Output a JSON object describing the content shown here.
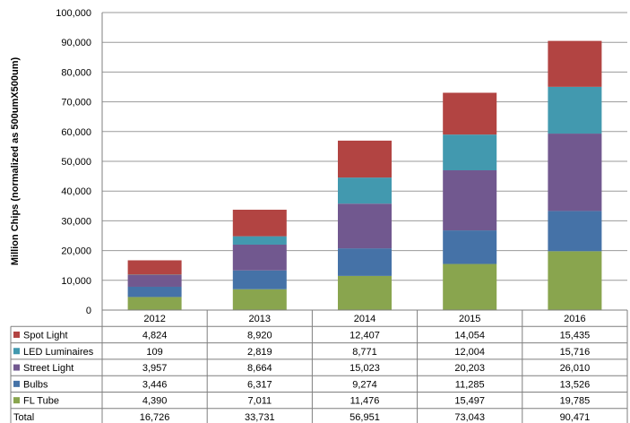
{
  "chart_data": {
    "type": "bar",
    "stacked": true,
    "title": "",
    "xlabel": "",
    "ylabel": "Million Chips  (normalized as 500umX500um)",
    "ylim": [
      0,
      100000
    ],
    "y_ticks": [
      "0",
      "10,000",
      "20,000",
      "30,000",
      "40,000",
      "50,000",
      "60,000",
      "70,000",
      "80,000",
      "90,000",
      "100,000"
    ],
    "categories": [
      "2012",
      "2013",
      "2014",
      "2015",
      "2016"
    ],
    "series": [
      {
        "name": "Spot Light",
        "color": "#B24442",
        "values": [
          4824,
          8920,
          12407,
          14054,
          15435
        ],
        "labels": [
          "4,824",
          "8,920",
          "12,407",
          "14,054",
          "15,435"
        ]
      },
      {
        "name": "LED Luminaires",
        "color": "#4299AF",
        "values": [
          109,
          2819,
          8771,
          12004,
          15716
        ],
        "labels": [
          "109",
          "2,819",
          "8,771",
          "12,004",
          "15,716"
        ]
      },
      {
        "name": "Street Light",
        "color": "#71588F",
        "values": [
          3957,
          8664,
          15023,
          20203,
          26010
        ],
        "labels": [
          "3,957",
          "8,664",
          "15,023",
          "20,203",
          "26,010"
        ]
      },
      {
        "name": "Bulbs",
        "color": "#4572A7",
        "values": [
          3446,
          6317,
          9274,
          11285,
          13526
        ],
        "labels": [
          "3,446",
          "6,317",
          "9,274",
          "11,285",
          "13,526"
        ]
      },
      {
        "name": "FL Tube",
        "color": "#89A54E",
        "values": [
          4390,
          7011,
          11476,
          15497,
          19785
        ],
        "labels": [
          "4,390",
          "7,011",
          "11,476",
          "15,497",
          "19,785"
        ]
      }
    ],
    "total": {
      "name": "Total",
      "values": [
        16726,
        33731,
        56951,
        73043,
        90471
      ],
      "labels": [
        "16,726",
        "33,731",
        "56,951",
        "73,043",
        "90,471"
      ]
    },
    "grid": true,
    "legend": "data-table"
  }
}
